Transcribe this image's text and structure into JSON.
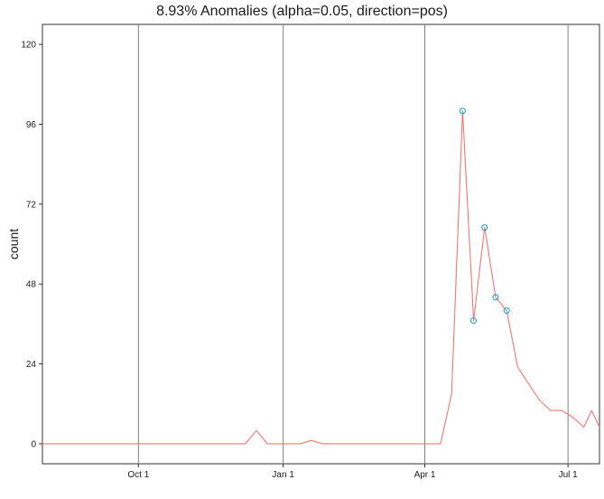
{
  "chart_data": {
    "type": "line",
    "title": "8.93% Anomalies (alpha=0.05, direction=pos)",
    "xlabel": "",
    "ylabel": "count",
    "xlim": [
      "2016-08-01",
      "2017-07-21"
    ],
    "ylim": [
      -6,
      126
    ],
    "y_ticks": [
      0,
      24,
      48,
      72,
      96,
      120
    ],
    "x_ticks": [
      {
        "date": "2016-10-01",
        "label": "Oct 1"
      },
      {
        "date": "2017-01-01",
        "label": "Jan 1"
      },
      {
        "date": "2017-04-01",
        "label": "Apr 1"
      },
      {
        "date": "2017-07-01",
        "label": "Jul 1"
      }
    ],
    "grid": "vertical lines at x ticks",
    "series": [
      {
        "color": "#f8766d",
        "points": [
          {
            "x": "2016-08-01",
            "y": 0
          },
          {
            "x": "2016-12-08",
            "y": 0
          },
          {
            "x": "2016-12-15",
            "y": 4
          },
          {
            "x": "2016-12-22",
            "y": 0
          },
          {
            "x": "2017-01-12",
            "y": 0
          },
          {
            "x": "2017-01-19",
            "y": 1
          },
          {
            "x": "2017-01-26",
            "y": 0
          },
          {
            "x": "2017-04-11",
            "y": 0
          },
          {
            "x": "2017-04-18",
            "y": 15
          },
          {
            "x": "2017-04-25",
            "y": 100
          },
          {
            "x": "2017-05-02",
            "y": 37
          },
          {
            "x": "2017-05-09",
            "y": 65
          },
          {
            "x": "2017-05-16",
            "y": 44
          },
          {
            "x": "2017-05-23",
            "y": 40
          },
          {
            "x": "2017-05-30",
            "y": 23
          },
          {
            "x": "2017-06-06",
            "y": 18
          },
          {
            "x": "2017-06-13",
            "y": 13
          },
          {
            "x": "2017-06-20",
            "y": 10
          },
          {
            "x": "2017-06-27",
            "y": 10
          },
          {
            "x": "2017-07-04",
            "y": 8
          },
          {
            "x": "2017-07-11",
            "y": 5
          },
          {
            "x": "2017-07-16",
            "y": 10
          },
          {
            "x": "2017-07-21",
            "y": 5
          }
        ]
      }
    ],
    "anomalies": {
      "color": "#00a5cf",
      "points": [
        {
          "x": "2017-04-25",
          "y": 100
        },
        {
          "x": "2017-05-02",
          "y": 37
        },
        {
          "x": "2017-05-09",
          "y": 65
        },
        {
          "x": "2017-05-16",
          "y": 44
        },
        {
          "x": "2017-05-23",
          "y": 40
        }
      ]
    }
  }
}
